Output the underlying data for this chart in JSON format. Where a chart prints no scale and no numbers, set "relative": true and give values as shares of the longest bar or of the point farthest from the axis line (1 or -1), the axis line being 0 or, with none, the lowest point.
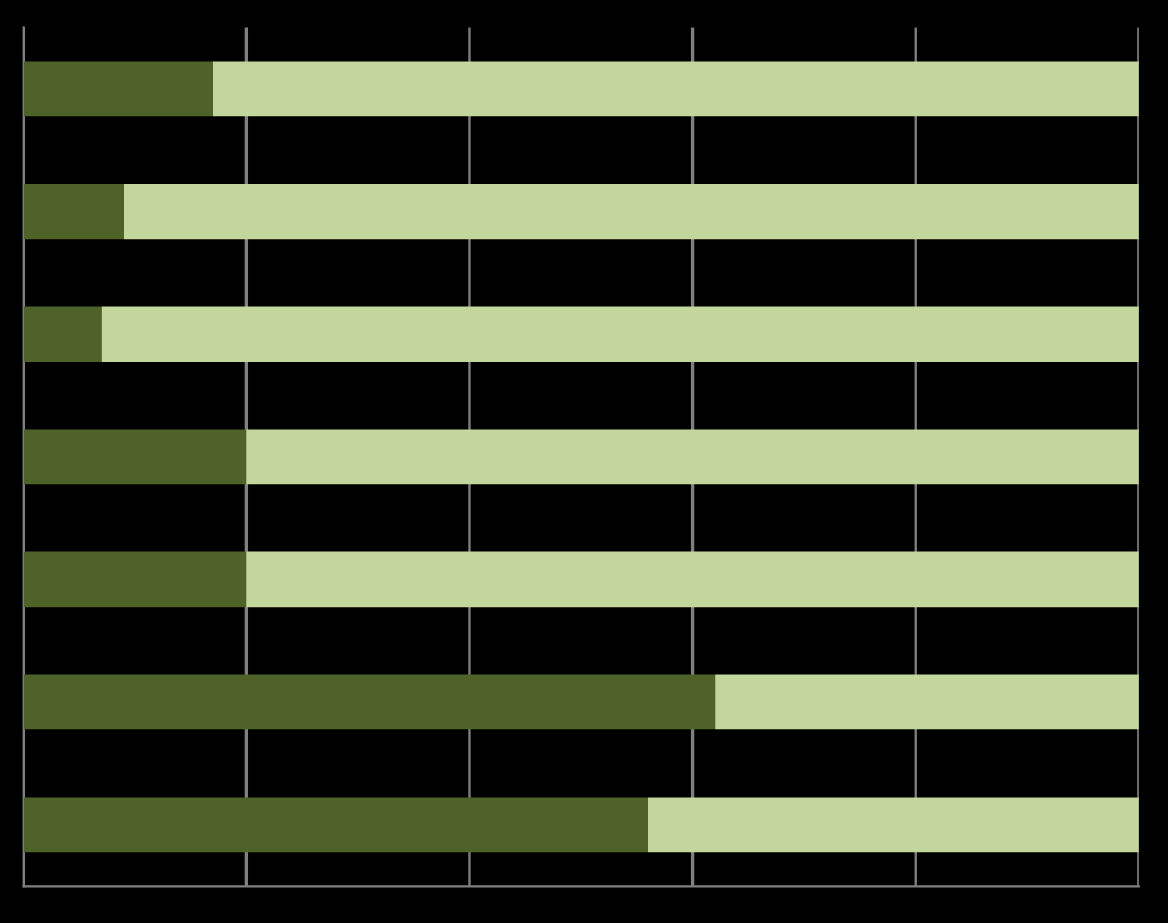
{
  "chart_data": {
    "type": "bar",
    "orientation": "horizontal",
    "stacked": true,
    "relative": true,
    "grid": "x",
    "tick_labels": false,
    "categories": [
      null,
      null,
      null,
      null,
      null,
      null,
      null
    ],
    "series": [
      {
        "color": "#4f6228",
        "values": [
          0.17,
          0.09,
          0.07,
          0.2,
          0.2,
          0.62,
          0.56
        ]
      },
      {
        "color": "#c3d69b",
        "values": [
          0.83,
          0.91,
          0.93,
          0.8,
          0.8,
          0.38,
          0.44
        ]
      }
    ]
  }
}
